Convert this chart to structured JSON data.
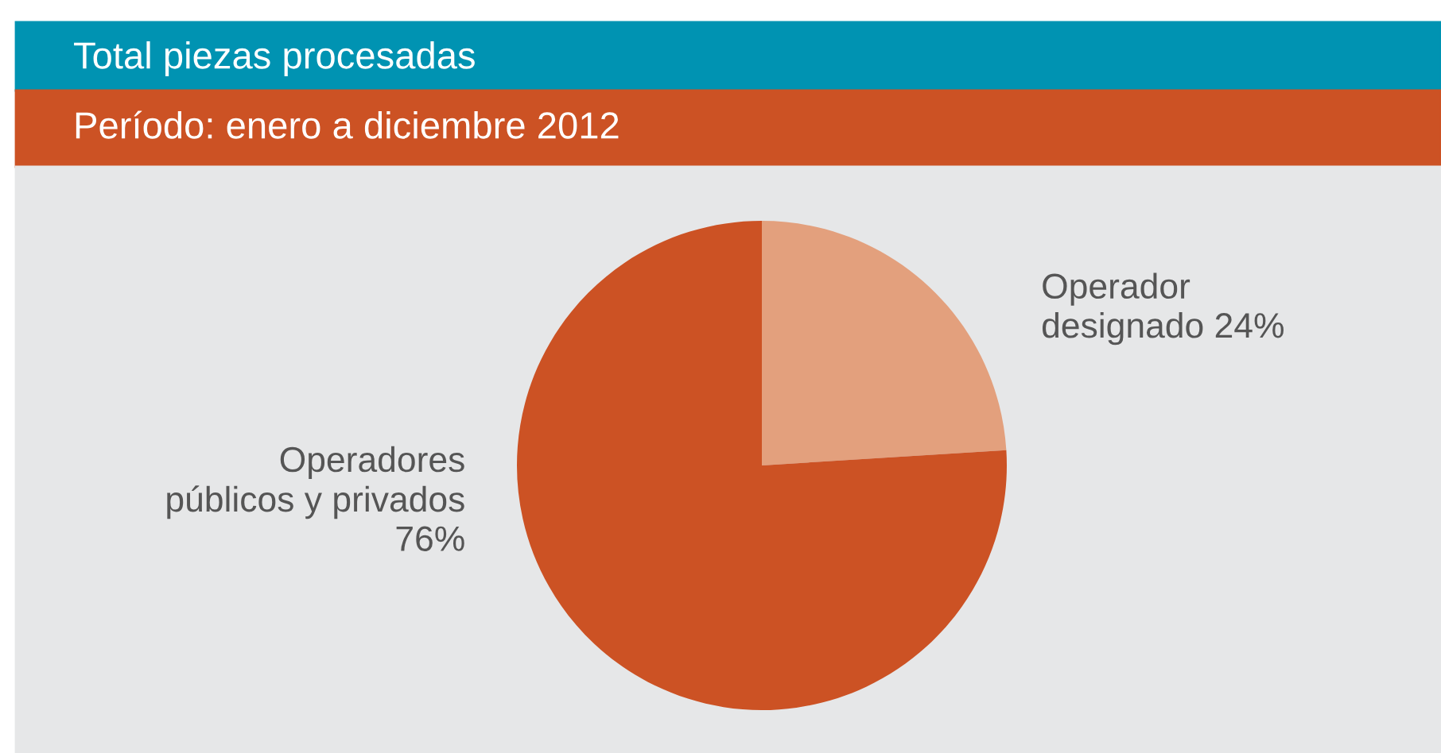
{
  "chart_data": {
    "type": "pie",
    "title": "Total piezas procesadas",
    "subtitle": "Período: enero a diciembre 2012",
    "categories": [
      "Operador\ndesignado",
      "Operadores\npúblicos y privados"
    ],
    "values": [
      24,
      76
    ],
    "value_labels": [
      "24%",
      "76%"
    ],
    "colors": [
      "#e3a07d",
      "#cc5224"
    ]
  }
}
